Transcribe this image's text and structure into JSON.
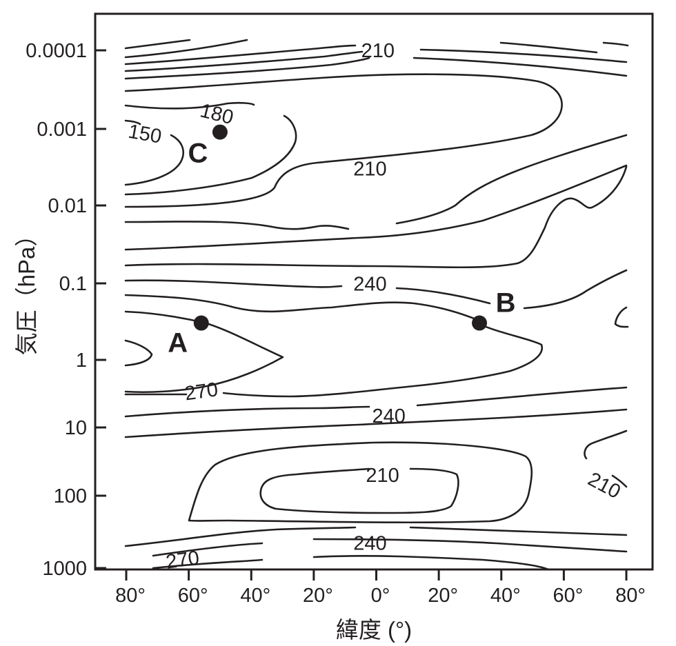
{
  "chart_data": {
    "type": "contour",
    "xlabel": "緯度 (°)",
    "ylabel": "気圧（hPa）",
    "x_ticks": [
      {
        "value": -80,
        "label": "80°"
      },
      {
        "value": -60,
        "label": "60°"
      },
      {
        "value": -40,
        "label": "40°"
      },
      {
        "value": -20,
        "label": "20°"
      },
      {
        "value": 0,
        "label": "0°"
      },
      {
        "value": 20,
        "label": "20°"
      },
      {
        "value": 40,
        "label": "40°"
      },
      {
        "value": 60,
        "label": "60°"
      },
      {
        "value": 80,
        "label": "80°"
      }
    ],
    "y_ticks": [
      {
        "value": 0.0001,
        "label": "0.0001"
      },
      {
        "value": 0.001,
        "label": "0.001"
      },
      {
        "value": 0.01,
        "label": "0.01"
      },
      {
        "value": 0.1,
        "label": "0.1"
      },
      {
        "value": 1,
        "label": "1"
      },
      {
        "value": 10,
        "label": "10"
      },
      {
        "value": 100,
        "label": "100"
      },
      {
        "value": 1000,
        "label": "1000"
      }
    ],
    "y_scale": "log",
    "contour_labels": [
      {
        "text": "210",
        "lat": 0.5,
        "p": 0.0001
      },
      {
        "text": "180",
        "lat": -51,
        "p": 0.00064
      },
      {
        "text": "150",
        "lat": -74,
        "p": 0.00115
      },
      {
        "text": "210",
        "lat": -2,
        "p": 0.0033
      },
      {
        "text": "240",
        "lat": -2,
        "p": 0.101
      },
      {
        "text": "270",
        "lat": -56,
        "p": 2.9
      },
      {
        "text": "240",
        "lat": 4,
        "p": 6.7
      },
      {
        "text": "210",
        "lat": 2,
        "p": 50
      },
      {
        "text": "210",
        "lat": 73,
        "p": 70
      },
      {
        "text": "240",
        "lat": -2,
        "p": 450
      },
      {
        "text": "270",
        "lat": -62,
        "p": 760
      }
    ],
    "points": [
      {
        "label": "A",
        "lat": -56,
        "p": 0.33
      },
      {
        "label": "B",
        "lat": 33,
        "p": 0.33
      },
      {
        "label": "C",
        "lat": -50,
        "p": 0.0011
      }
    ]
  }
}
